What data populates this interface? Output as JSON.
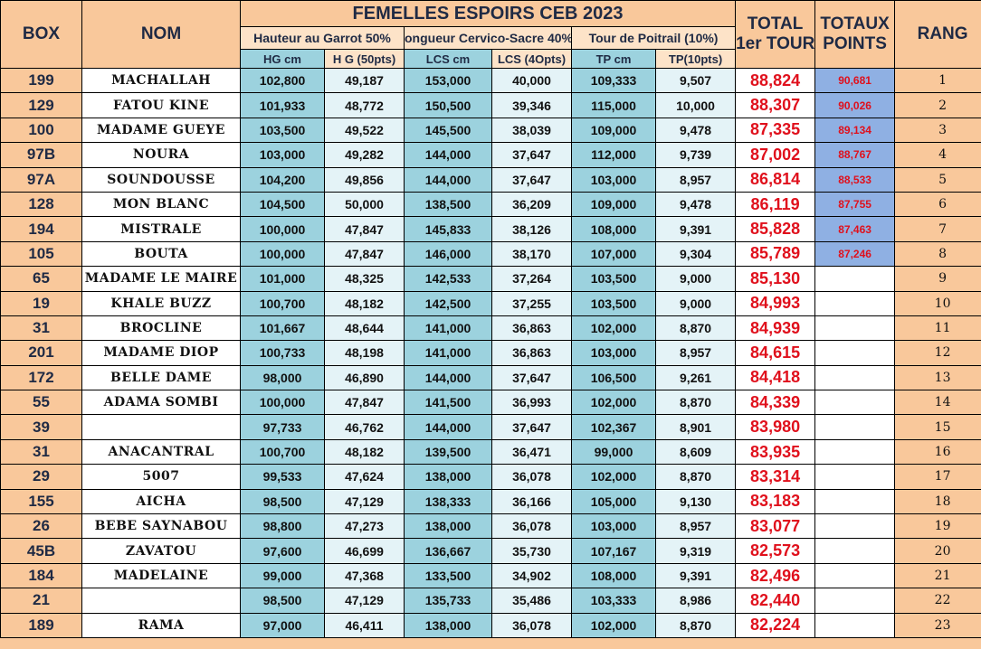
{
  "title": "FEMELLES ESPOIRS CEB 2023",
  "headers": {
    "box": "BOX",
    "nom": "NOM",
    "group_hg": "Hauteur au Garrot 50%",
    "group_lcs": "ongueur Cervico-Sacre 40%",
    "group_tp": "Tour de Poitrail (10%)",
    "total_line1": "TOTAL",
    "total_line2": "1er TOUR",
    "points_line1": "TOTAUX",
    "points_line2": "POINTS",
    "rang": "RANG",
    "hg_cm": "HG cm",
    "hg_pts": "H G (50pts)",
    "lcs_cm": "LCS cm",
    "lcs_pts": "LCS (4Opts)",
    "tp_cm": "TP cm",
    "tp_pts": "TP(10pts)"
  },
  "colors": {
    "header_bg": "#f9c89b",
    "measure_dark": "#9cd2de",
    "measure_light": "#e4f3f7",
    "total_red": "#e0101c",
    "points_highlight": "#8fb0e3"
  },
  "rows": [
    {
      "box": "199",
      "nom": "MACHALLAH",
      "hg": "102,800",
      "hgp": "49,187",
      "lcs": "153,000",
      "lcsp": "40,000",
      "tp": "109,333",
      "tpp": "9,507",
      "total": "88,824",
      "points": "90,681",
      "rang": "1"
    },
    {
      "box": "129",
      "nom": "FATOU KINE",
      "hg": "101,933",
      "hgp": "48,772",
      "lcs": "150,500",
      "lcsp": "39,346",
      "tp": "115,000",
      "tpp": "10,000",
      "total": "88,307",
      "points": "90,026",
      "rang": "2"
    },
    {
      "box": "100",
      "nom": "MADAME GUEYE",
      "hg": "103,500",
      "hgp": "49,522",
      "lcs": "145,500",
      "lcsp": "38,039",
      "tp": "109,000",
      "tpp": "9,478",
      "total": "87,335",
      "points": "89,134",
      "rang": "3"
    },
    {
      "box": "97B",
      "nom": "NOURA",
      "hg": "103,000",
      "hgp": "49,282",
      "lcs": "144,000",
      "lcsp": "37,647",
      "tp": "112,000",
      "tpp": "9,739",
      "total": "87,002",
      "points": "88,767",
      "rang": "4"
    },
    {
      "box": "97A",
      "nom": "SOUNDOUSSE",
      "hg": "104,200",
      "hgp": "49,856",
      "lcs": "144,000",
      "lcsp": "37,647",
      "tp": "103,000",
      "tpp": "8,957",
      "total": "86,814",
      "points": "88,533",
      "rang": "5"
    },
    {
      "box": "128",
      "nom": "MON BLANC",
      "hg": "104,500",
      "hgp": "50,000",
      "lcs": "138,500",
      "lcsp": "36,209",
      "tp": "109,000",
      "tpp": "9,478",
      "total": "86,119",
      "points": "87,755",
      "rang": "6"
    },
    {
      "box": "194",
      "nom": "MISTRALE",
      "hg": "100,000",
      "hgp": "47,847",
      "lcs": "145,833",
      "lcsp": "38,126",
      "tp": "108,000",
      "tpp": "9,391",
      "total": "85,828",
      "points": "87,463",
      "rang": "7"
    },
    {
      "box": "105",
      "nom": "BOUTA",
      "hg": "100,000",
      "hgp": "47,847",
      "lcs": "146,000",
      "lcsp": "38,170",
      "tp": "107,000",
      "tpp": "9,304",
      "total": "85,789",
      "points": "87,246",
      "rang": "8"
    },
    {
      "box": "65",
      "nom": "MADAME LE MAIRE",
      "hg": "101,000",
      "hgp": "48,325",
      "lcs": "142,533",
      "lcsp": "37,264",
      "tp": "103,500",
      "tpp": "9,000",
      "total": "85,130",
      "points": "",
      "rang": "9"
    },
    {
      "box": "19",
      "nom": "KHALE BUZZ",
      "hg": "100,700",
      "hgp": "48,182",
      "lcs": "142,500",
      "lcsp": "37,255",
      "tp": "103,500",
      "tpp": "9,000",
      "total": "84,993",
      "points": "",
      "rang": "10"
    },
    {
      "box": "31",
      "nom": "BROCLINE",
      "hg": "101,667",
      "hgp": "48,644",
      "lcs": "141,000",
      "lcsp": "36,863",
      "tp": "102,000",
      "tpp": "8,870",
      "total": "84,939",
      "points": "",
      "rang": "11"
    },
    {
      "box": "201",
      "nom": "MADAME DIOP",
      "hg": "100,733",
      "hgp": "48,198",
      "lcs": "141,000",
      "lcsp": "36,863",
      "tp": "103,000",
      "tpp": "8,957",
      "total": "84,615",
      "points": "",
      "rang": "12"
    },
    {
      "box": "172",
      "nom": "BELLE DAME",
      "hg": "98,000",
      "hgp": "46,890",
      "lcs": "144,000",
      "lcsp": "37,647",
      "tp": "106,500",
      "tpp": "9,261",
      "total": "84,418",
      "points": "",
      "rang": "13"
    },
    {
      "box": "55",
      "nom": "ADAMA SOMBI",
      "hg": "100,000",
      "hgp": "47,847",
      "lcs": "141,500",
      "lcsp": "36,993",
      "tp": "102,000",
      "tpp": "8,870",
      "total": "84,339",
      "points": "",
      "rang": "14"
    },
    {
      "box": "39",
      "nom": "",
      "hg": "97,733",
      "hgp": "46,762",
      "lcs": "144,000",
      "lcsp": "37,647",
      "tp": "102,367",
      "tpp": "8,901",
      "total": "83,980",
      "points": "",
      "rang": "15"
    },
    {
      "box": "31",
      "nom": "ANACANTRAL",
      "hg": "100,700",
      "hgp": "48,182",
      "lcs": "139,500",
      "lcsp": "36,471",
      "tp": "99,000",
      "tpp": "8,609",
      "total": "83,935",
      "points": "",
      "rang": "16"
    },
    {
      "box": "29",
      "nom": "5007",
      "hg": "99,533",
      "hgp": "47,624",
      "lcs": "138,000",
      "lcsp": "36,078",
      "tp": "102,000",
      "tpp": "8,870",
      "total": "83,314",
      "points": "",
      "rang": "17"
    },
    {
      "box": "155",
      "nom": "AICHA",
      "hg": "98,500",
      "hgp": "47,129",
      "lcs": "138,333",
      "lcsp": "36,166",
      "tp": "105,000",
      "tpp": "9,130",
      "total": "83,183",
      "points": "",
      "rang": "18"
    },
    {
      "box": "26",
      "nom": "BEBE SAYNABOU",
      "hg": "98,800",
      "hgp": "47,273",
      "lcs": "138,000",
      "lcsp": "36,078",
      "tp": "103,000",
      "tpp": "8,957",
      "total": "83,077",
      "points": "",
      "rang": "19"
    },
    {
      "box": "45B",
      "nom": "ZAVATOU",
      "hg": "97,600",
      "hgp": "46,699",
      "lcs": "136,667",
      "lcsp": "35,730",
      "tp": "107,167",
      "tpp": "9,319",
      "total": "82,573",
      "points": "",
      "rang": "20"
    },
    {
      "box": "184",
      "nom": "MADELAINE",
      "hg": "99,000",
      "hgp": "47,368",
      "lcs": "133,500",
      "lcsp": "34,902",
      "tp": "108,000",
      "tpp": "9,391",
      "total": "82,496",
      "points": "",
      "rang": "21"
    },
    {
      "box": "21",
      "nom": "",
      "hg": "98,500",
      "hgp": "47,129",
      "lcs": "135,733",
      "lcsp": "35,486",
      "tp": "103,333",
      "tpp": "8,986",
      "total": "82,440",
      "points": "",
      "rang": "22"
    },
    {
      "box": "189",
      "nom": "RAMA",
      "hg": "97,000",
      "hgp": "46,411",
      "lcs": "138,000",
      "lcsp": "36,078",
      "tp": "102,000",
      "tpp": "8,870",
      "total": "82,224",
      "points": "",
      "rang": "23"
    }
  ]
}
